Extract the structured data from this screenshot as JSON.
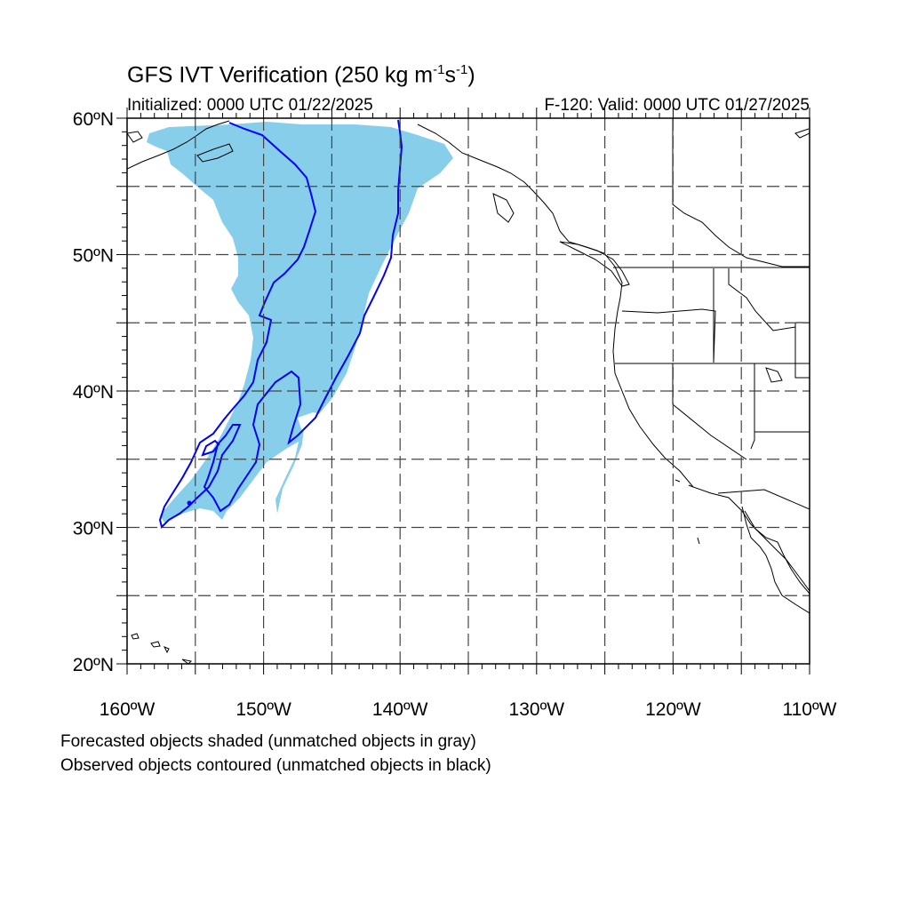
{
  "title": {
    "main": "GFS IVT Verification (250 kg m",
    "sup1": "-1",
    "mid": "s",
    "sup2": "-1",
    "end": ")"
  },
  "initialized": "Initialized: 0000 UTC 01/22/2025",
  "valid": "F-120: Valid: 0000 UTC 01/27/2025",
  "footnotes": [
    "Forecasted objects shaded (unmatched objects in gray)",
    "Observed objects contoured (unmatched objects in black)"
  ],
  "map": {
    "projection": "cylindrical-equidistant",
    "lon_range": [
      -160,
      -110
    ],
    "lat_range": [
      20,
      60
    ],
    "grid_lons": [
      -155,
      -150,
      -145,
      -140,
      -135,
      -130,
      -125,
      -120,
      -115
    ],
    "grid_lats": [
      25,
      30,
      35,
      40,
      45,
      50,
      55
    ],
    "lat_labels": [
      "20ºN",
      "30ºN",
      "40ºN",
      "50ºN",
      "60ºN"
    ],
    "lon_labels": [
      "160ºW",
      "150ºW",
      "140ºW",
      "130ºW",
      "120ºW",
      "110ºW"
    ],
    "colors": {
      "forecast_fill": "#87ceeb",
      "observed_contour": "#0000ff",
      "coast": "#000000",
      "grid": "#444444"
    }
  }
}
